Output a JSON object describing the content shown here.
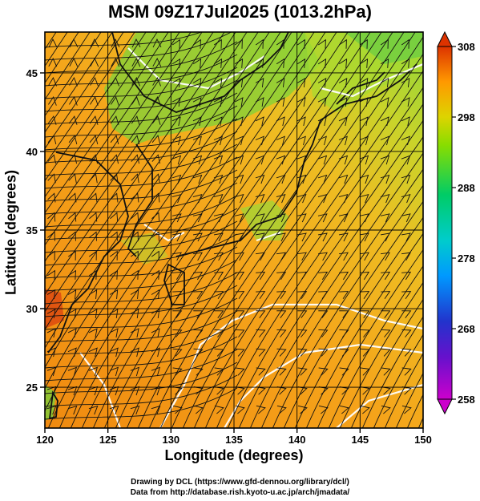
{
  "title": "MSM 09Z17Jul2025 (1013.2hPa)",
  "x_axis": {
    "label": "Longitude (degrees)",
    "min": 120,
    "max": 150,
    "ticks": [
      120,
      125,
      130,
      135,
      140,
      145,
      150
    ]
  },
  "y_axis": {
    "label": "Latitude (degrees)",
    "min": 22.4,
    "max": 47.6,
    "ticks": [
      25,
      30,
      35,
      40,
      45
    ]
  },
  "colorbar": {
    "min": 258,
    "max": 308,
    "ticks": [
      258,
      268,
      278,
      288,
      298,
      308
    ],
    "colors": [
      "#cc00cc",
      "#3333cc",
      "#0099ff",
      "#00cccc",
      "#00cc66",
      "#66dd00",
      "#ccdd00",
      "#ffaa00",
      "#ff8800",
      "#dd3300"
    ]
  },
  "credits": {
    "line1": "Drawing by DCL (https://www.gfd-dennou.org/library/dcl/)",
    "line2": "Data from http://database.rish.kyoto-u.ac.jp/arch/jmadata/"
  }
}
